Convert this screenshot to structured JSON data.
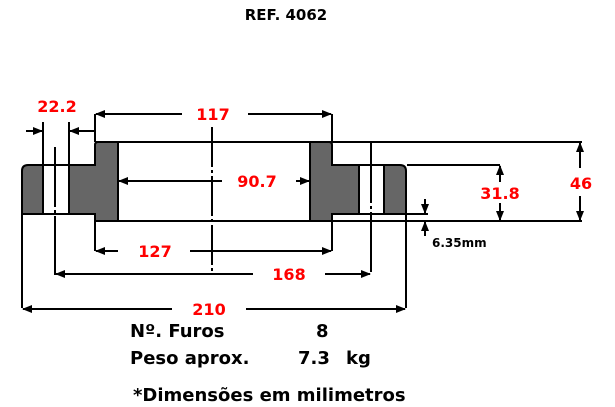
{
  "title": "REF. 4062",
  "dimensions": {
    "hole_diameter": "22.2",
    "raised_face_diameter": "117",
    "bore_diameter": "90.7",
    "hub_diameter": "127",
    "bolt_circle": "168",
    "outside_diameter": "210",
    "flange_thickness": "31.8",
    "total_height": "46",
    "raised_face_height": "6.35mm"
  },
  "specs": {
    "holes_label": "Nº. Furos",
    "holes_value": "8",
    "weight_label": "Peso aprox.",
    "weight_value": "7.3",
    "weight_unit": "kg"
  },
  "footnote": "*Dimensões em milimetros",
  "colors": {
    "dimension_text": "#ff0000",
    "section_fill": "#666666"
  }
}
